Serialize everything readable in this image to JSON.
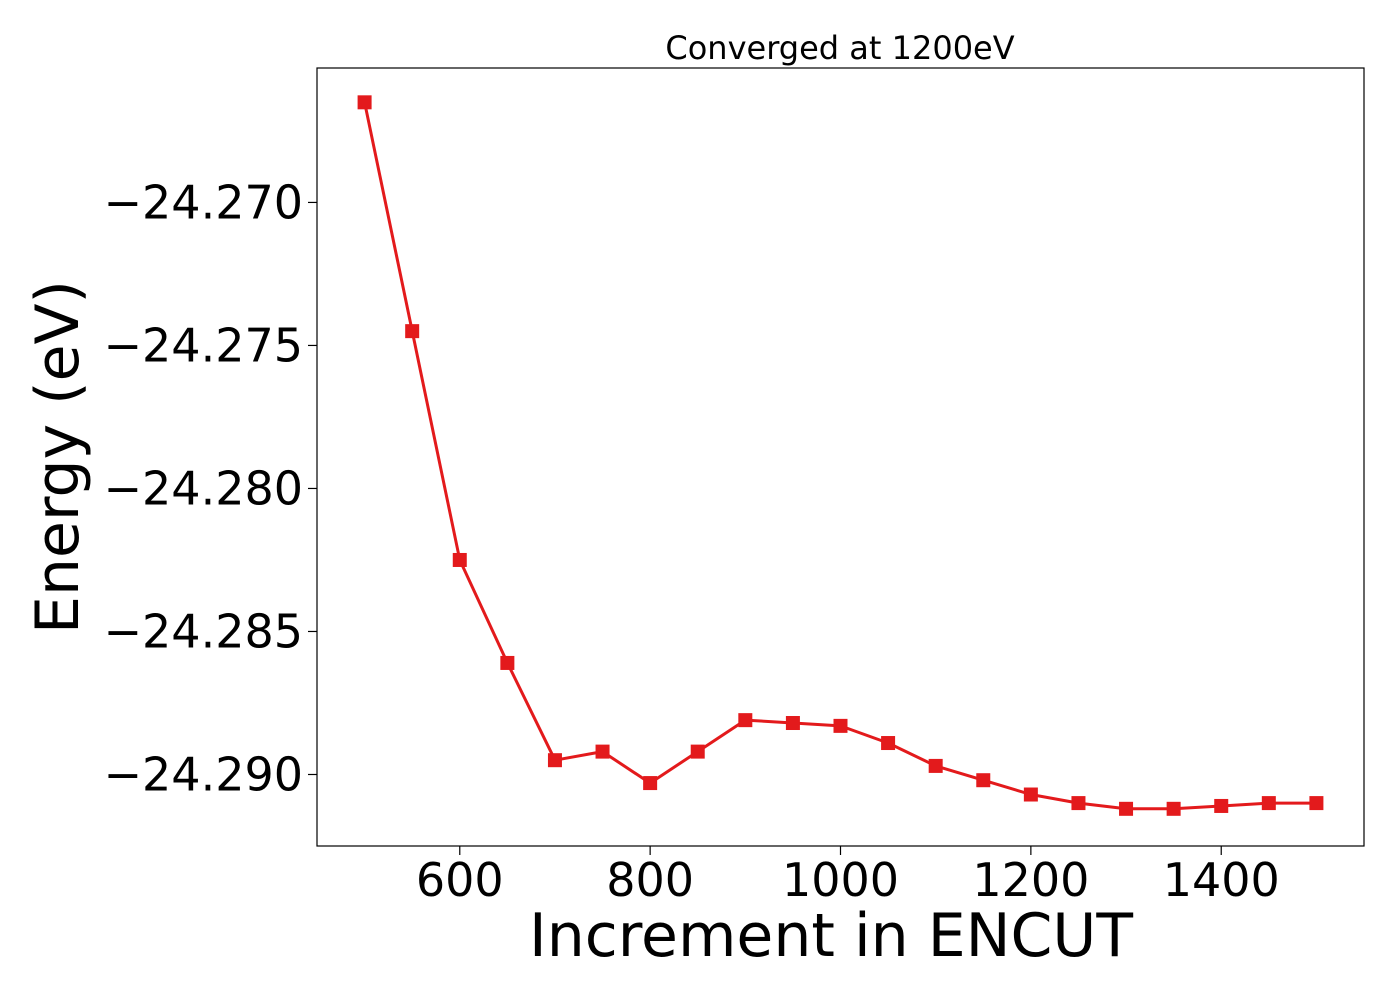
{
  "chart_data": {
    "type": "line",
    "title": "Converged at 1200eV",
    "xlabel": "Increment in ENCUT",
    "ylabel": "Energy (eV)",
    "xlim": [
      450,
      1550
    ],
    "ylim": [
      -24.2925,
      -24.2653
    ],
    "x_ticks": [
      600,
      800,
      1000,
      1200,
      1400
    ],
    "y_ticks": [
      -24.27,
      -24.275,
      -24.28,
      -24.285,
      -24.29
    ],
    "x_tick_labels": [
      "600",
      "800",
      "1000",
      "1200",
      "1400"
    ],
    "y_tick_labels": [
      "−24.270",
      "−24.275",
      "−24.280",
      "−24.285",
      "−24.290"
    ],
    "grid": false,
    "series": [
      {
        "color": "#e31a1c",
        "marker": "square",
        "x": [
          500,
          550,
          600,
          650,
          700,
          750,
          800,
          850,
          900,
          950,
          1000,
          1050,
          1100,
          1150,
          1200,
          1250,
          1300,
          1350,
          1400,
          1450,
          1500
        ],
        "y": [
          -24.2665,
          -24.2745,
          -24.2825,
          -24.2861,
          -24.2895,
          -24.2892,
          -24.2903,
          -24.2892,
          -24.2881,
          -24.2882,
          -24.2883,
          -24.2889,
          -24.2897,
          -24.2902,
          -24.2907,
          -24.291,
          -24.2912,
          -24.2912,
          -24.2911,
          -24.291,
          -24.291
        ]
      }
    ]
  }
}
